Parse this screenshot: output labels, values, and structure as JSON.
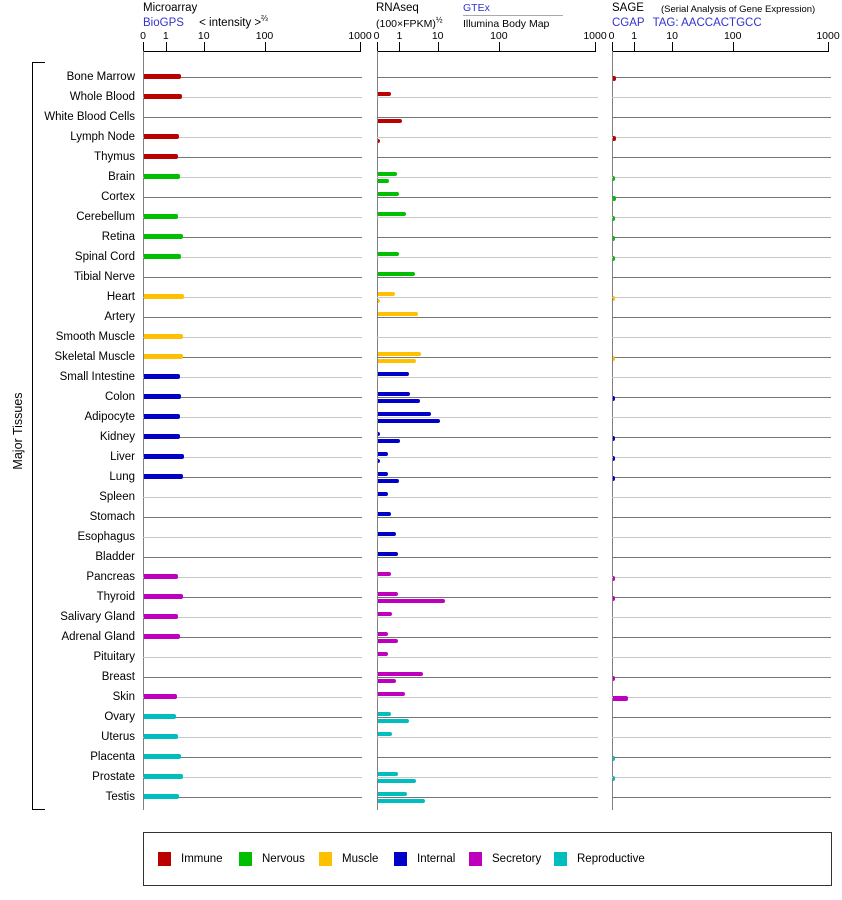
{
  "panels": {
    "microarray": {
      "title": "Microarray",
      "source": "BioGPS",
      "unit": "< intensity >",
      "unit_exp": "⅔"
    },
    "rnaseq": {
      "title": "RNAseq",
      "unit": "(100×FPKM)",
      "unit_exp": "½",
      "source1": "GTEx",
      "source2": "Illumina Body Map"
    },
    "sage": {
      "title": "SAGE",
      "subtitle": "(Serial Analysis of Gene Expression)",
      "source": "CGAP",
      "tag": "TAG: AACCACTGCC"
    }
  },
  "y_axis_label": "Major Tissues",
  "axis": {
    "tick_labels": [
      "0",
      "1",
      "10",
      "100",
      "1000"
    ],
    "tick_values": [
      0,
      1,
      10,
      100,
      1000
    ]
  },
  "legend": [
    {
      "label": "Immune",
      "color": "#BB0000"
    },
    {
      "label": "Nervous",
      "color": "#00BE00"
    },
    {
      "label": "Muscle",
      "color": "#FFC000"
    },
    {
      "label": "Internal",
      "color": "#0000C8"
    },
    {
      "label": "Secretory",
      "color": "#BE00BE"
    },
    {
      "label": "Reproductive",
      "color": "#00BEBE"
    }
  ],
  "chart_data": {
    "type": "bar",
    "orientation": "horizontal",
    "x_scale": "zero-then-log, ticks at 0 / 1 / 10 / 100 / 1000",
    "panel_names": [
      "Microarray (BioGPS)",
      "RNAseq (GTEx / Illumina Body Map)",
      "SAGE (CGAP)"
    ],
    "series_note": "rnaseq panel has two bars per tissue: gtex above the gridline, illumina below",
    "tissues": [
      {
        "name": "Bone Marrow",
        "group": "Immune",
        "microarray": 2.3,
        "gtex": null,
        "illumina": null,
        "sage": 0.15
      },
      {
        "name": "Whole Blood",
        "group": "Immune",
        "microarray": 2.5,
        "gtex": 0.6,
        "illumina": null,
        "sage": null
      },
      {
        "name": "White Blood Cells",
        "group": "Immune",
        "microarray": null,
        "gtex": null,
        "illumina": 1.1,
        "sage": null
      },
      {
        "name": "Lymph Node",
        "group": "Immune",
        "microarray": 2.1,
        "gtex": null,
        "illumina": 0.08,
        "sage": 0.15
      },
      {
        "name": "Thymus",
        "group": "Immune",
        "microarray": 2.0,
        "gtex": null,
        "illumina": null,
        "sage": null
      },
      {
        "name": "Brain",
        "group": "Nervous",
        "microarray": 2.2,
        "gtex": 0.85,
        "illumina": 0.5,
        "sage": 0.1
      },
      {
        "name": "Cortex",
        "group": "Nervous",
        "microarray": null,
        "gtex": 0.95,
        "illumina": null,
        "sage": 0.15
      },
      {
        "name": "Cerebellum",
        "group": "Nervous",
        "microarray": 2.0,
        "gtex": 1.4,
        "illumina": null,
        "sage": 0.1
      },
      {
        "name": "Retina",
        "group": "Nervous",
        "microarray": 2.7,
        "gtex": null,
        "illumina": null,
        "sage": 0.1
      },
      {
        "name": "Spinal Cord",
        "group": "Nervous",
        "microarray": 2.4,
        "gtex": 0.93,
        "illumina": null,
        "sage": 0.1
      },
      {
        "name": "Tibial Nerve",
        "group": "Nervous",
        "microarray": null,
        "gtex": 2.4,
        "illumina": null,
        "sage": null
      },
      {
        "name": "Heart",
        "group": "Muscle",
        "microarray": 2.9,
        "gtex": 0.76,
        "illumina": 0.08,
        "sage": 0.1
      },
      {
        "name": "Artery",
        "group": "Muscle",
        "microarray": null,
        "gtex": 2.9,
        "illumina": null,
        "sage": null
      },
      {
        "name": "Smooth Muscle",
        "group": "Muscle",
        "microarray": 2.6,
        "gtex": null,
        "illumina": null,
        "sage": null
      },
      {
        "name": "Skeletal Muscle",
        "group": "Muscle",
        "microarray": 2.7,
        "gtex": 3.4,
        "illumina": 2.6,
        "sage": 0.1
      },
      {
        "name": "Small Intestine",
        "group": "Internal",
        "microarray": 2.2,
        "gtex": 1.65,
        "illumina": null,
        "sage": null
      },
      {
        "name": "Colon",
        "group": "Internal",
        "microarray": 2.4,
        "gtex": 1.8,
        "illumina": 3.2,
        "sage": 0.1
      },
      {
        "name": "Adipocyte",
        "group": "Internal",
        "microarray": 2.2,
        "gtex": 6.2,
        "illumina": 10.5,
        "sage": null
      },
      {
        "name": "Kidney",
        "group": "Internal",
        "microarray": 2.2,
        "gtex": 0.08,
        "illumina": 1.0,
        "sage": 0.1
      },
      {
        "name": "Liver",
        "group": "Internal",
        "microarray": 2.9,
        "gtex": 0.45,
        "illumina": 0.06,
        "sage": 0.1
      },
      {
        "name": "Lung",
        "group": "Internal",
        "microarray": 2.6,
        "gtex": 0.45,
        "illumina": 0.95,
        "sage": 0.1
      },
      {
        "name": "Spleen",
        "group": "Internal",
        "microarray": null,
        "gtex": 0.45,
        "illumina": null,
        "sage": null
      },
      {
        "name": "Stomach",
        "group": "Internal",
        "microarray": null,
        "gtex": 0.6,
        "illumina": null,
        "sage": null
      },
      {
        "name": "Esophagus",
        "group": "Internal",
        "microarray": null,
        "gtex": 0.8,
        "illumina": null,
        "sage": null
      },
      {
        "name": "Bladder",
        "group": "Internal",
        "microarray": null,
        "gtex": 0.9,
        "illumina": null,
        "sage": null
      },
      {
        "name": "Pancreas",
        "group": "Secretory",
        "microarray": 2.0,
        "gtex": 0.6,
        "illumina": null,
        "sage": 0.1
      },
      {
        "name": "Thyroid",
        "group": "Secretory",
        "microarray": 2.7,
        "gtex": 0.9,
        "illumina": 12.5,
        "sage": 0.1
      },
      {
        "name": "Salivary Gland",
        "group": "Secretory",
        "microarray": 2.0,
        "gtex": 0.63,
        "illumina": null,
        "sage": null
      },
      {
        "name": "Adrenal Gland",
        "group": "Secretory",
        "microarray": 2.2,
        "gtex": 0.45,
        "illumina": 0.9,
        "sage": null
      },
      {
        "name": "Pituitary",
        "group": "Secretory",
        "microarray": null,
        "gtex": 0.45,
        "illumina": null,
        "sage": null
      },
      {
        "name": "Breast",
        "group": "Secretory",
        "microarray": null,
        "gtex": 4.0,
        "illumina": 0.8,
        "sage": 0.1
      },
      {
        "name": "Skin",
        "group": "Secretory",
        "microarray": 1.9,
        "gtex": 1.35,
        "illumina": null,
        "sage": 0.7
      },
      {
        "name": "Ovary",
        "group": "Reproductive",
        "microarray": 1.8,
        "gtex": 0.6,
        "illumina": 1.65,
        "sage": null
      },
      {
        "name": "Uterus",
        "group": "Reproductive",
        "microarray": 2.0,
        "gtex": 0.65,
        "illumina": null,
        "sage": null
      },
      {
        "name": "Placenta",
        "group": "Reproductive",
        "microarray": 2.4,
        "gtex": null,
        "illumina": null,
        "sage": 0.1
      },
      {
        "name": "Prostate",
        "group": "Reproductive",
        "microarray": 2.6,
        "gtex": 0.9,
        "illumina": 2.5,
        "sage": 0.1
      },
      {
        "name": "Testis",
        "group": "Reproductive",
        "microarray": 2.1,
        "gtex": 1.5,
        "illumina": 4.3,
        "sage": null
      }
    ]
  }
}
